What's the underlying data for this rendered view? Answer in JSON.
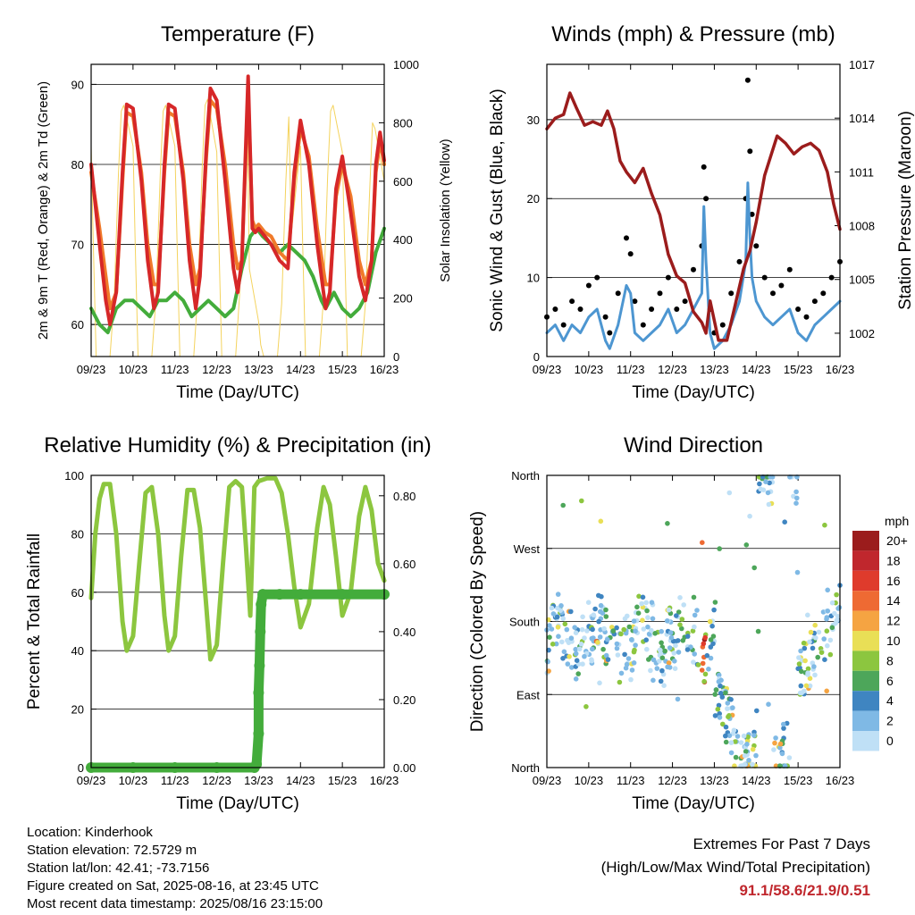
{
  "x_ticks": [
    "09/23",
    "10/23",
    "11/23",
    "12/23",
    "13/23",
    "14/23",
    "15/23",
    "16/23"
  ],
  "x_label": "Time (Day/UTC)",
  "colors": {
    "temp_2m": "#d62728",
    "temp_9m": "#f07a2a",
    "dewpoint": "#43ac3b",
    "solar": "#f4d35e",
    "wind_gust": "#000000",
    "wind_sonic": "#4d96d1",
    "pressure": "#9b1c1c",
    "rh": "#8cc63f",
    "precip": "#43ac3b"
  },
  "chart_data": [
    {
      "type": "line",
      "title": "Temperature (F)",
      "xlabel": "Time (Day/UTC)",
      "ylabel": "2m & 9m T (Red, Orange) & 2m Td (Green)",
      "y2label": "Solar Insolation (Yellow)",
      "x_ticks": [
        "09/23",
        "10/23",
        "11/23",
        "12/23",
        "13/23",
        "14/23",
        "15/23",
        "16/23"
      ],
      "ylim": [
        56,
        92.5
      ],
      "y_ticks": [
        60,
        70,
        80,
        90
      ],
      "y2lim": [
        0,
        1000
      ],
      "y2_ticks": [
        0,
        200,
        400,
        600,
        800,
        1000
      ],
      "xlim": [
        9,
        16
      ],
      "grid": true,
      "series": [
        {
          "key": "temp_2m",
          "axis": "left",
          "x": [
            9.0,
            9.2,
            9.35,
            9.45,
            9.6,
            9.75,
            9.85,
            10.0,
            10.2,
            10.35,
            10.5,
            10.6,
            10.75,
            10.85,
            11.0,
            11.2,
            11.35,
            11.5,
            11.6,
            11.75,
            11.85,
            12.0,
            12.2,
            12.4,
            12.5,
            12.6,
            12.75,
            12.85,
            12.92,
            13.0,
            13.15,
            13.3,
            13.5,
            13.7,
            13.85,
            14.0,
            14.2,
            14.4,
            14.6,
            14.7,
            14.85,
            15.0,
            15.2,
            15.4,
            15.55,
            15.7,
            15.8,
            15.9,
            16.0
          ],
          "y": [
            80,
            70,
            63,
            60,
            64,
            79,
            87.5,
            87,
            78,
            68,
            62,
            64,
            80,
            87.5,
            87,
            78,
            68,
            62,
            66,
            82,
            89.5,
            88,
            78,
            67,
            64,
            68,
            91,
            72,
            71.5,
            72,
            71,
            70,
            68,
            67,
            79,
            85.5,
            80,
            70,
            62,
            64,
            77,
            81,
            74,
            66,
            63,
            68,
            80,
            84,
            80.5
          ]
        },
        {
          "key": "temp_9m",
          "axis": "left",
          "x": [
            9.0,
            9.2,
            9.35,
            9.45,
            9.6,
            9.75,
            9.85,
            10.0,
            10.2,
            10.35,
            10.5,
            10.6,
            10.75,
            10.85,
            11.0,
            11.2,
            11.35,
            11.5,
            11.6,
            11.75,
            11.85,
            12.0,
            12.2,
            12.4,
            12.5,
            12.6,
            12.75,
            12.85,
            12.92,
            13.0,
            13.15,
            13.3,
            13.5,
            13.7,
            13.85,
            14.0,
            14.2,
            14.4,
            14.6,
            14.7,
            14.85,
            15.0,
            15.2,
            15.4,
            15.55,
            15.7,
            15.8,
            15.9,
            16.0
          ],
          "y": [
            79,
            72,
            66,
            62,
            64,
            78,
            86.5,
            86,
            79,
            70,
            65,
            65,
            79,
            86.5,
            86,
            79,
            70,
            65,
            67,
            81,
            88,
            87,
            80,
            70,
            67,
            68,
            89,
            73,
            72,
            72.5,
            71.5,
            71,
            69,
            68,
            78,
            84.5,
            81,
            72,
            65,
            65,
            76,
            80,
            76,
            68,
            65,
            68,
            79,
            83,
            80
          ]
        },
        {
          "key": "dewpoint",
          "axis": "left",
          "x": [
            9.0,
            9.2,
            9.4,
            9.6,
            9.8,
            10.0,
            10.2,
            10.4,
            10.6,
            10.8,
            11.0,
            11.2,
            11.4,
            11.6,
            11.8,
            12.0,
            12.2,
            12.4,
            12.6,
            12.8,
            12.95,
            13.1,
            13.3,
            13.5,
            13.7,
            13.9,
            14.1,
            14.3,
            14.5,
            14.6,
            14.8,
            15.0,
            15.2,
            15.4,
            15.6,
            15.8,
            16.0
          ],
          "y": [
            62,
            60,
            59,
            62,
            63,
            63,
            62,
            61,
            63,
            63,
            64,
            63,
            61,
            62,
            63,
            62,
            61,
            62,
            67,
            71,
            72,
            71,
            70,
            69,
            70,
            69,
            68,
            66,
            63,
            62,
            64,
            62,
            61,
            62,
            64,
            69,
            72
          ]
        },
        {
          "key": "solar",
          "axis": "right",
          "x": [
            9.0,
            9.05,
            9.12,
            9.3,
            9.45,
            9.55,
            9.65,
            9.72,
            9.78,
            10.0,
            10.05,
            10.12,
            10.3,
            10.45,
            10.55,
            10.65,
            10.72,
            10.78,
            11.0,
            11.05,
            11.12,
            11.3,
            11.45,
            11.55,
            11.65,
            11.72,
            11.78,
            12.0,
            12.05,
            12.12,
            12.3,
            12.45,
            12.55,
            12.65,
            12.72,
            12.78,
            13.0,
            13.05,
            13.12,
            13.3,
            13.45,
            13.55,
            13.65,
            13.72,
            13.78,
            14.0,
            14.05,
            14.12,
            14.3,
            14.45,
            14.55,
            14.65,
            14.72,
            14.78,
            15.0,
            15.05,
            15.12,
            15.3,
            15.45,
            15.55,
            15.65,
            15.72,
            15.78,
            16.0
          ],
          "y": [
            720,
            400,
            0,
            0,
            0,
            200,
            620,
            840,
            860,
            720,
            400,
            0,
            0,
            0,
            200,
            620,
            840,
            860,
            720,
            400,
            0,
            0,
            0,
            220,
            640,
            860,
            880,
            700,
            400,
            0,
            0,
            0,
            220,
            640,
            900,
            300,
            120,
            40,
            0,
            0,
            0,
            180,
            600,
            820,
            420,
            720,
            400,
            0,
            0,
            0,
            200,
            620,
            840,
            860,
            700,
            400,
            0,
            0,
            0,
            180,
            560,
            800,
            780,
            600
          ]
        }
      ]
    },
    {
      "type": "line",
      "title": "Winds (mph) & Pressure (mb)",
      "xlabel": "Time (Day/UTC)",
      "ylabel": "Sonic Wind & Gust (Blue, Black)",
      "y2label": "Station Pressure (Maroon)",
      "x_ticks": [
        "09/23",
        "10/23",
        "11/23",
        "12/23",
        "13/23",
        "14/23",
        "15/23",
        "16/23"
      ],
      "ylim": [
        0,
        37
      ],
      "y_ticks": [
        0,
        10,
        20,
        30
      ],
      "y2lim": [
        1000.7,
        1017
      ],
      "y2_ticks": [
        1002,
        1005,
        1008,
        1011,
        1014,
        1017
      ],
      "xlim": [
        9,
        16
      ],
      "grid": true,
      "series": [
        {
          "key": "pressure",
          "axis": "right",
          "x": [
            9.0,
            9.2,
            9.4,
            9.55,
            9.7,
            9.9,
            10.1,
            10.3,
            10.45,
            10.6,
            10.75,
            10.9,
            11.1,
            11.3,
            11.5,
            11.7,
            11.9,
            12.1,
            12.3,
            12.5,
            12.7,
            12.8,
            12.9,
            13.1,
            13.3,
            13.5,
            13.7,
            13.85,
            14.0,
            14.2,
            14.5,
            14.7,
            14.9,
            15.1,
            15.3,
            15.5,
            15.7,
            15.85,
            16.0
          ],
          "y": [
            1013.4,
            1014.0,
            1014.2,
            1015.4,
            1014.6,
            1013.6,
            1013.8,
            1013.6,
            1014.4,
            1013.4,
            1011.6,
            1011.0,
            1010.4,
            1011.2,
            1009.8,
            1008.6,
            1006.4,
            1005.2,
            1004.8,
            1003.2,
            1002.6,
            1002.0,
            1003.8,
            1001.6,
            1001.6,
            1003.6,
            1005.6,
            1006.6,
            1008.2,
            1010.8,
            1013.0,
            1012.6,
            1012.0,
            1012.4,
            1012.6,
            1012.2,
            1011.0,
            1009.2,
            1007.8
          ]
        },
        {
          "key": "wind_gust",
          "axis": "left",
          "style": "points",
          "x": [
            9.0,
            9.2,
            9.4,
            9.6,
            9.8,
            10.0,
            10.2,
            10.4,
            10.5,
            10.7,
            10.9,
            11.0,
            11.1,
            11.3,
            11.5,
            11.7,
            11.9,
            12.1,
            12.3,
            12.5,
            12.7,
            12.75,
            12.8,
            12.9,
            13.0,
            13.2,
            13.4,
            13.6,
            13.75,
            13.8,
            13.85,
            13.9,
            14.0,
            14.2,
            14.4,
            14.6,
            14.8,
            15.0,
            15.2,
            15.4,
            15.6,
            15.8,
            16.0
          ],
          "y": [
            5,
            6,
            4,
            7,
            6,
            9,
            10,
            5,
            3,
            8,
            15,
            13,
            7,
            4,
            6,
            8,
            10,
            6,
            7,
            11,
            14,
            24,
            20,
            6,
            3,
            4,
            8,
            12,
            20,
            35,
            26,
            18,
            14,
            10,
            8,
            9,
            11,
            6,
            5,
            7,
            8,
            10,
            12
          ]
        },
        {
          "key": "wind_sonic",
          "axis": "left",
          "x": [
            9.0,
            9.2,
            9.4,
            9.6,
            9.8,
            10.0,
            10.2,
            10.4,
            10.5,
            10.7,
            10.9,
            11.0,
            11.1,
            11.3,
            11.5,
            11.7,
            11.9,
            12.1,
            12.3,
            12.5,
            12.7,
            12.75,
            12.8,
            12.9,
            13.0,
            13.2,
            13.4,
            13.6,
            13.75,
            13.8,
            13.85,
            13.9,
            14.0,
            14.2,
            14.4,
            14.6,
            14.8,
            15.0,
            15.2,
            15.4,
            15.6,
            15.8,
            16.0
          ],
          "y": [
            3,
            4,
            2,
            4,
            3,
            5,
            6,
            2,
            1,
            4,
            9,
            8,
            3,
            2,
            3,
            4,
            6,
            3,
            4,
            6,
            8,
            19,
            12,
            3,
            1,
            2,
            4,
            7,
            12,
            22,
            15,
            10,
            7,
            5,
            4,
            5,
            6,
            3,
            2,
            4,
            5,
            6,
            7
          ]
        }
      ]
    },
    {
      "type": "line",
      "title": "Relative Humidity (%) & Precipitation (in)",
      "xlabel": "Time (Day/UTC)",
      "ylabel": "Percent & Total Rainfall",
      "x_ticks": [
        "09/23",
        "10/23",
        "11/23",
        "12/23",
        "13/23",
        "14/23",
        "15/23",
        "16/23"
      ],
      "ylim": [
        0,
        100
      ],
      "y_ticks": [
        0,
        20,
        40,
        60,
        80,
        100
      ],
      "y2lim": [
        0,
        0.86
      ],
      "y2_ticks": [
        0.0,
        0.2,
        0.4,
        0.6,
        0.8
      ],
      "y2_tick_labels": [
        "0.00",
        "0.20",
        "0.40",
        "0.60",
        "0.80"
      ],
      "xlim": [
        9,
        16
      ],
      "grid": true,
      "series": [
        {
          "key": "rh",
          "axis": "left",
          "x": [
            9.0,
            9.1,
            9.2,
            9.3,
            9.45,
            9.6,
            9.75,
            9.85,
            10.0,
            10.15,
            10.3,
            10.45,
            10.6,
            10.75,
            10.85,
            11.0,
            11.15,
            11.3,
            11.45,
            11.6,
            11.75,
            11.85,
            12.0,
            12.15,
            12.3,
            12.45,
            12.6,
            12.7,
            12.8,
            12.9,
            13.0,
            13.2,
            13.4,
            13.55,
            13.7,
            13.85,
            14.0,
            14.2,
            14.4,
            14.55,
            14.7,
            14.85,
            15.0,
            15.2,
            15.4,
            15.55,
            15.7,
            15.85,
            16.0
          ],
          "y": [
            58,
            80,
            92,
            97,
            97,
            80,
            50,
            40,
            45,
            70,
            94,
            96,
            80,
            52,
            40,
            45,
            72,
            95,
            95,
            82,
            55,
            37,
            42,
            70,
            96,
            98,
            96,
            75,
            52,
            96,
            98,
            99,
            99,
            94,
            80,
            62,
            48,
            56,
            82,
            96,
            90,
            72,
            52,
            60,
            86,
            96,
            88,
            70,
            64
          ]
        },
        {
          "key": "precip",
          "axis": "right",
          "style": "points",
          "x": [
            9.0,
            10.0,
            11.0,
            12.0,
            12.9,
            12.95,
            13.0,
            13.0,
            13.02,
            13.04,
            13.06,
            13.1,
            13.5,
            14.0,
            15.0,
            16.0
          ],
          "y": [
            0.0,
            0.0,
            0.0,
            0.0,
            0.0,
            0.01,
            0.1,
            0.22,
            0.3,
            0.4,
            0.48,
            0.51,
            0.51,
            0.51,
            0.51,
            0.51
          ]
        }
      ]
    },
    {
      "type": "scatter",
      "title": "Wind Direction",
      "xlabel": "Time (Day/UTC)",
      "ylabel": "Direction (Colored By Speed)",
      "x_ticks": [
        "09/23",
        "10/23",
        "11/23",
        "12/23",
        "13/23",
        "14/23",
        "15/23",
        "16/23"
      ],
      "y_ticks": [
        "North",
        "East",
        "South",
        "West",
        "North"
      ],
      "y_tick_values": [
        0,
        90,
        180,
        270,
        360
      ],
      "ylim": [
        0,
        360
      ],
      "xlim": [
        9,
        16
      ],
      "grid": true,
      "legend_title": "mph",
      "legend_labels": [
        "20+",
        "18",
        "16",
        "14",
        "12",
        "10",
        "8",
        "6",
        "4",
        "2",
        "0"
      ],
      "legend_colors": [
        "#9b1c1c",
        "#c0272d",
        "#df3b2c",
        "#ee6a33",
        "#f5a442",
        "#e9df56",
        "#8cc63f",
        "#4da65a",
        "#3f85c1",
        "#7fb9e5",
        "#bfe0f6"
      ]
    }
  ],
  "footer": {
    "location": "Location: Kinderhook",
    "elevation": "Station elevation: 72.5729 m",
    "latlon": "Station lat/lon: 42.41; -73.7156",
    "created": "Figure created on Sat, 2025-08-16, at 23:45 UTC",
    "recent": "Most recent data timestamp: 2025/08/16 23:15:00"
  },
  "extremes": {
    "title": "Extremes For Past 7 Days",
    "subtitle": "(High/Low/Max Wind/Total Precipitation)",
    "values": "91.1/58.6/21.9/0.51"
  }
}
